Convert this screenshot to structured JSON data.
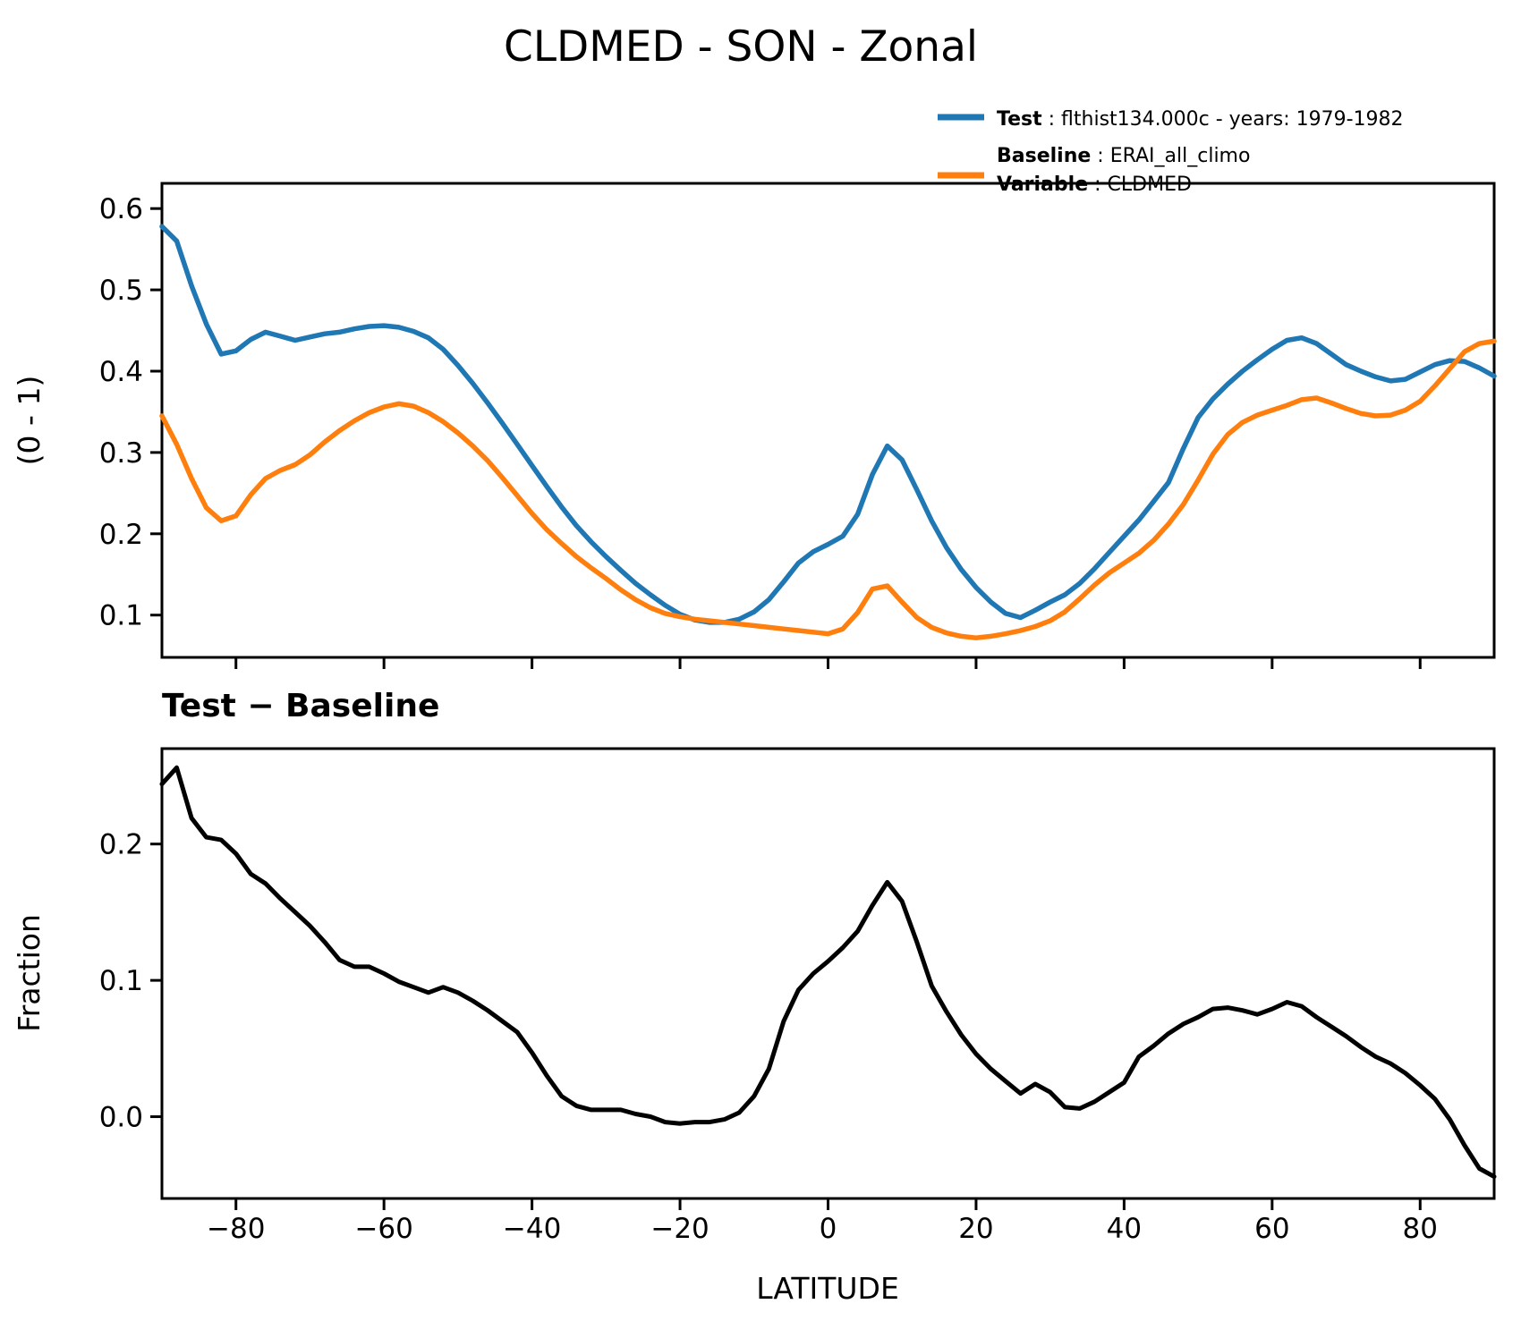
{
  "figure": {
    "title": "CLDMED - SON - Zonal",
    "subtitle_diff": "Test − Baseline",
    "background": "#ffffff",
    "axis_color": "#000000"
  },
  "legend": {
    "position": "top-right-outside",
    "test_label": "Test",
    "test_desc": " : flthist134.000c - years: 1979-1982",
    "baseline_label": "Baseline",
    "baseline_desc": " : ERAI_all_climo",
    "variable_label": "Variable",
    "variable_desc": " : CLDMED",
    "test_color": "#1f77b4",
    "baseline_color": "#ff7f0e"
  },
  "chart_data": [
    {
      "type": "line",
      "title": "CLDMED - SON - Zonal",
      "xlabel": "",
      "ylabel": "(0 - 1)",
      "xlim": [
        -90,
        90
      ],
      "ylim": [
        0.048,
        0.631
      ],
      "xticks": [
        -80,
        -60,
        -40,
        -20,
        0,
        20,
        40,
        60,
        80
      ],
      "yticks": [
        0.1,
        0.2,
        0.3,
        0.4,
        0.5,
        0.6
      ],
      "ytick_decimals": 1,
      "grid": false,
      "x": [
        -90,
        -88,
        -86,
        -84,
        -82,
        -80,
        -78,
        -76,
        -74,
        -72,
        -70,
        -68,
        -66,
        -64,
        -62,
        -60,
        -58,
        -56,
        -54,
        -52,
        -50,
        -48,
        -46,
        -44,
        -42,
        -40,
        -38,
        -36,
        -34,
        -32,
        -30,
        -28,
        -26,
        -24,
        -22,
        -20,
        -18,
        -16,
        -14,
        -12,
        -10,
        -8,
        -6,
        -4,
        -2,
        0,
        2,
        4,
        6,
        8,
        10,
        12,
        14,
        16,
        18,
        20,
        22,
        24,
        26,
        28,
        30,
        32,
        34,
        36,
        38,
        40,
        42,
        44,
        46,
        48,
        50,
        52,
        54,
        56,
        58,
        60,
        62,
        64,
        66,
        68,
        70,
        72,
        74,
        76,
        78,
        80,
        82,
        84,
        86,
        88,
        90
      ],
      "series": [
        {
          "name": "Test",
          "color": "#1f77b4",
          "values": [
            0.578,
            0.56,
            0.505,
            0.458,
            0.421,
            0.425,
            0.439,
            0.448,
            0.443,
            0.438,
            0.442,
            0.446,
            0.448,
            0.452,
            0.455,
            0.456,
            0.454,
            0.449,
            0.441,
            0.427,
            0.407,
            0.385,
            0.361,
            0.336,
            0.31,
            0.284,
            0.258,
            0.233,
            0.21,
            0.19,
            0.172,
            0.155,
            0.139,
            0.125,
            0.112,
            0.101,
            0.094,
            0.091,
            0.091,
            0.095,
            0.104,
            0.119,
            0.141,
            0.164,
            0.178,
            0.187,
            0.197,
            0.224,
            0.273,
            0.308,
            0.291,
            0.254,
            0.216,
            0.183,
            0.156,
            0.134,
            0.116,
            0.102,
            0.097,
            0.106,
            0.116,
            0.125,
            0.139,
            0.157,
            0.177,
            0.197,
            0.217,
            0.24,
            0.263,
            0.305,
            0.343,
            0.366,
            0.384,
            0.4,
            0.414,
            0.427,
            0.438,
            0.441,
            0.434,
            0.421,
            0.408,
            0.4,
            0.393,
            0.388,
            0.39,
            0.399,
            0.408,
            0.413,
            0.412,
            0.404,
            0.394
          ]
        },
        {
          "name": "Baseline",
          "color": "#ff7f0e",
          "values": [
            0.345,
            0.31,
            0.268,
            0.232,
            0.216,
            0.222,
            0.248,
            0.268,
            0.278,
            0.285,
            0.297,
            0.313,
            0.327,
            0.339,
            0.349,
            0.356,
            0.36,
            0.357,
            0.349,
            0.338,
            0.324,
            0.308,
            0.29,
            0.269,
            0.247,
            0.225,
            0.205,
            0.188,
            0.172,
            0.158,
            0.145,
            0.131,
            0.119,
            0.109,
            0.102,
            0.098,
            0.095,
            0.093,
            0.091,
            0.089,
            0.087,
            0.085,
            0.083,
            0.081,
            0.079,
            0.077,
            0.083,
            0.103,
            0.132,
            0.136,
            0.116,
            0.097,
            0.085,
            0.078,
            0.074,
            0.072,
            0.074,
            0.077,
            0.081,
            0.086,
            0.093,
            0.104,
            0.12,
            0.137,
            0.152,
            0.164,
            0.176,
            0.192,
            0.212,
            0.236,
            0.266,
            0.298,
            0.322,
            0.337,
            0.346,
            0.352,
            0.358,
            0.365,
            0.367,
            0.361,
            0.354,
            0.348,
            0.345,
            0.346,
            0.352,
            0.363,
            0.382,
            0.403,
            0.424,
            0.434,
            0.437
          ]
        }
      ]
    },
    {
      "type": "line",
      "title": "Test − Baseline",
      "xlabel": "LATITUDE",
      "ylabel": "Fraction",
      "xlim": [
        -90,
        90
      ],
      "ylim": [
        -0.06,
        0.27
      ],
      "xticks": [
        -80,
        -60,
        -40,
        -20,
        0,
        20,
        40,
        60,
        80
      ],
      "yticks": [
        0.0,
        0.1,
        0.2
      ],
      "ytick_decimals": 1,
      "grid": false,
      "x": [
        -90,
        -88,
        -86,
        -84,
        -82,
        -80,
        -78,
        -76,
        -74,
        -72,
        -70,
        -68,
        -66,
        -64,
        -62,
        -60,
        -58,
        -56,
        -54,
        -52,
        -50,
        -48,
        -46,
        -44,
        -42,
        -40,
        -38,
        -36,
        -34,
        -32,
        -30,
        -28,
        -26,
        -24,
        -22,
        -20,
        -18,
        -16,
        -14,
        -12,
        -10,
        -8,
        -6,
        -4,
        -2,
        0,
        2,
        4,
        6,
        8,
        10,
        12,
        14,
        16,
        18,
        20,
        22,
        24,
        26,
        28,
        30,
        32,
        34,
        36,
        38,
        40,
        42,
        44,
        46,
        48,
        50,
        52,
        54,
        56,
        58,
        60,
        62,
        64,
        66,
        68,
        70,
        72,
        74,
        76,
        78,
        80,
        82,
        84,
        86,
        88,
        90
      ],
      "series": [
        {
          "name": "Test − Baseline",
          "color": "#000000",
          "values": [
            0.244,
            0.256,
            0.219,
            0.205,
            0.203,
            0.193,
            0.178,
            0.171,
            0.16,
            0.15,
            0.14,
            0.128,
            0.115,
            0.11,
            0.11,
            0.105,
            0.099,
            0.095,
            0.091,
            0.095,
            0.091,
            0.085,
            0.078,
            0.07,
            0.062,
            0.047,
            0.03,
            0.015,
            0.008,
            0.005,
            0.005,
            0.005,
            0.002,
            0.0,
            -0.004,
            -0.005,
            -0.004,
            -0.004,
            -0.002,
            0.003,
            0.015,
            0.035,
            0.07,
            0.093,
            0.105,
            0.114,
            0.124,
            0.136,
            0.155,
            0.172,
            0.158,
            0.128,
            0.096,
            0.077,
            0.06,
            0.046,
            0.035,
            0.026,
            0.017,
            0.024,
            0.018,
            0.007,
            0.006,
            0.011,
            0.018,
            0.025,
            0.044,
            0.052,
            0.061,
            0.068,
            0.073,
            0.079,
            0.08,
            0.078,
            0.075,
            0.079,
            0.084,
            0.081,
            0.073,
            0.066,
            0.059,
            0.051,
            0.044,
            0.039,
            0.032,
            0.023,
            0.013,
            -0.002,
            -0.021,
            -0.038,
            -0.044
          ]
        }
      ]
    }
  ]
}
